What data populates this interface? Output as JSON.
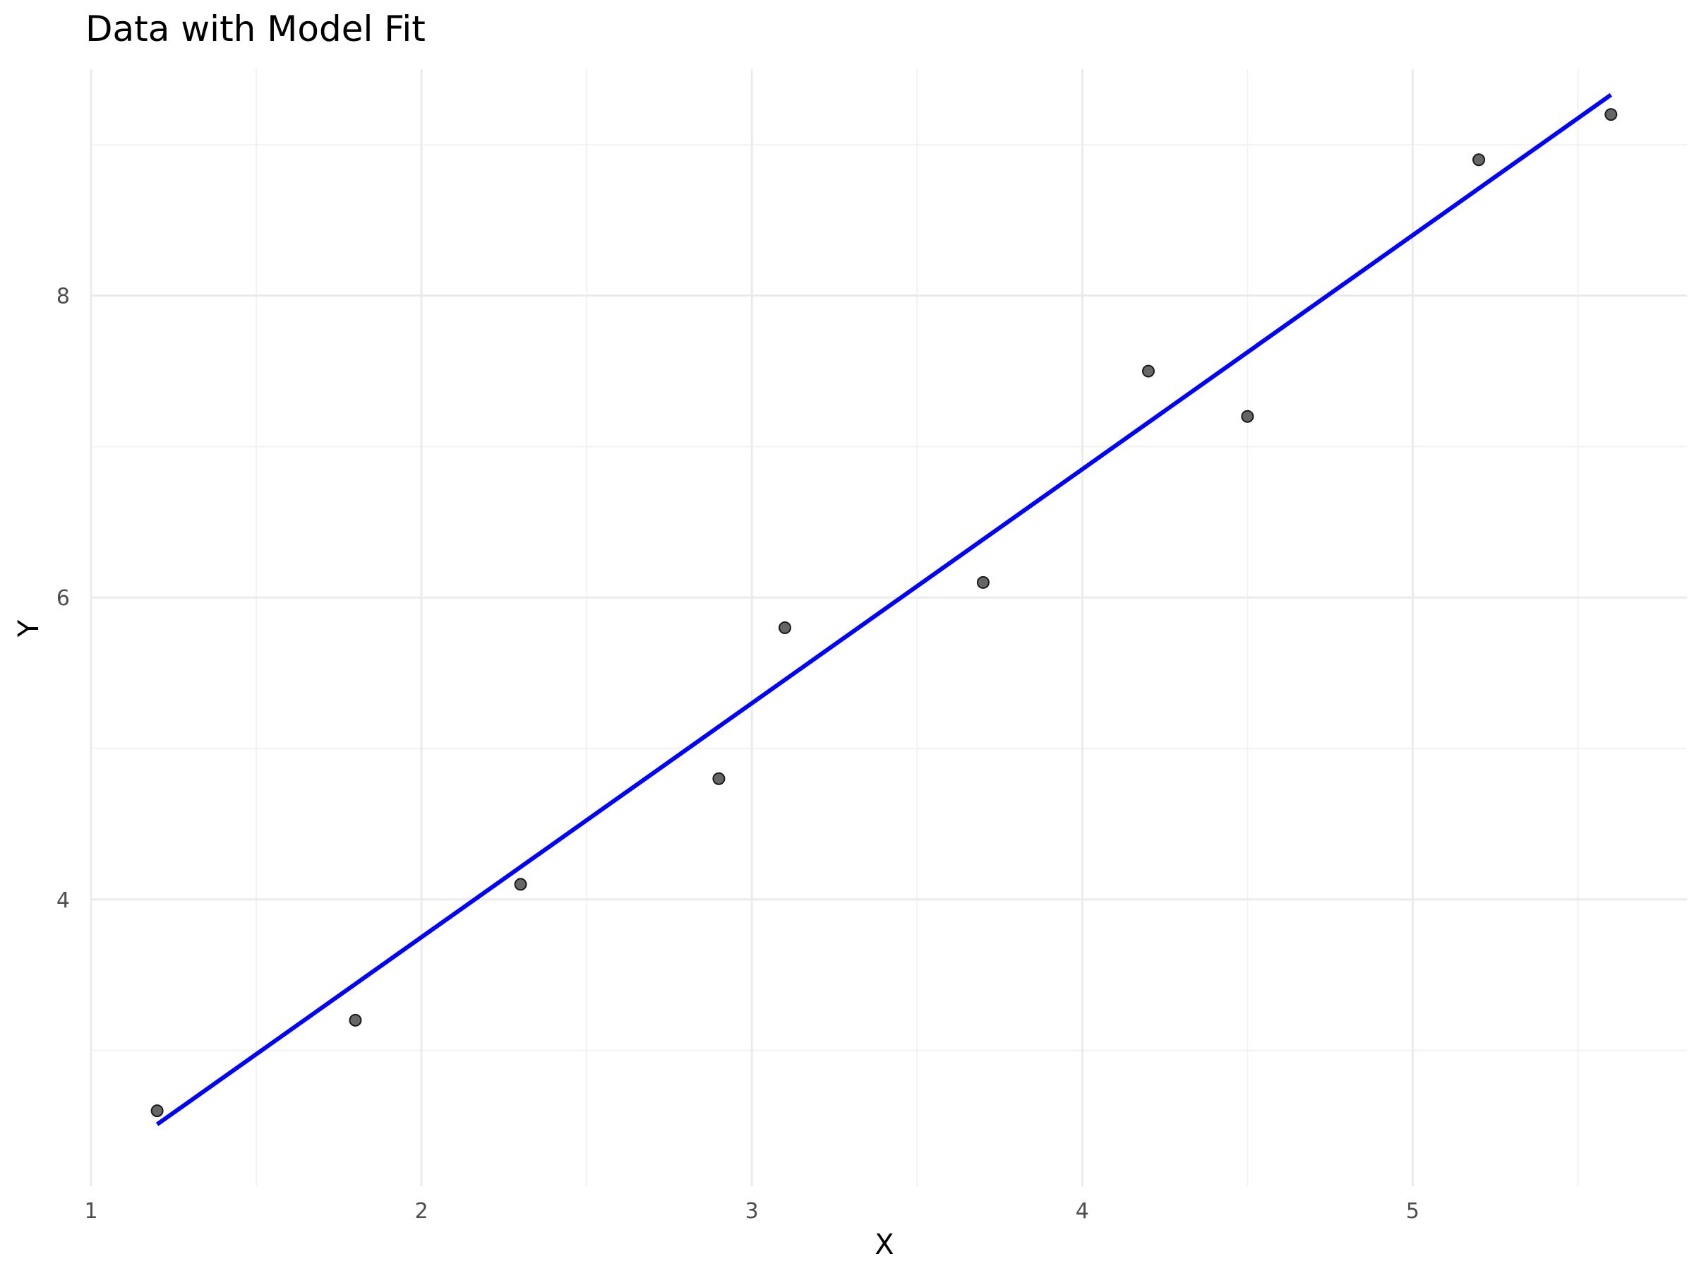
{
  "chart_data": {
    "type": "scatter",
    "title": "Data with Model Fit",
    "xlabel": "X",
    "ylabel": "Y",
    "xlim": [
      1.0,
      5.83
    ],
    "ylim": [
      2.1,
      9.5
    ],
    "x_ticks": [
      1,
      2,
      3,
      4,
      5
    ],
    "y_ticks": [
      4,
      6,
      8
    ],
    "grid": true,
    "legend": "none",
    "points": [
      {
        "x": 1.2,
        "y": 2.6
      },
      {
        "x": 1.8,
        "y": 3.2
      },
      {
        "x": 2.3,
        "y": 4.1
      },
      {
        "x": 2.9,
        "y": 4.8
      },
      {
        "x": 3.1,
        "y": 5.8
      },
      {
        "x": 3.7,
        "y": 6.1
      },
      {
        "x": 4.2,
        "y": 7.5
      },
      {
        "x": 4.5,
        "y": 7.2
      },
      {
        "x": 5.2,
        "y": 8.9
      },
      {
        "x": 5.6,
        "y": 9.2
      }
    ],
    "fit_line": {
      "x": [
        1.2,
        5.6
      ],
      "y": [
        2.51,
        9.33
      ]
    },
    "colors": {
      "points": "#333333",
      "fit_line": "#0000ff",
      "grid_major": "#ebebeb",
      "grid_minor": "#f2f2f2",
      "tick_text": "#4d4d4d"
    }
  }
}
